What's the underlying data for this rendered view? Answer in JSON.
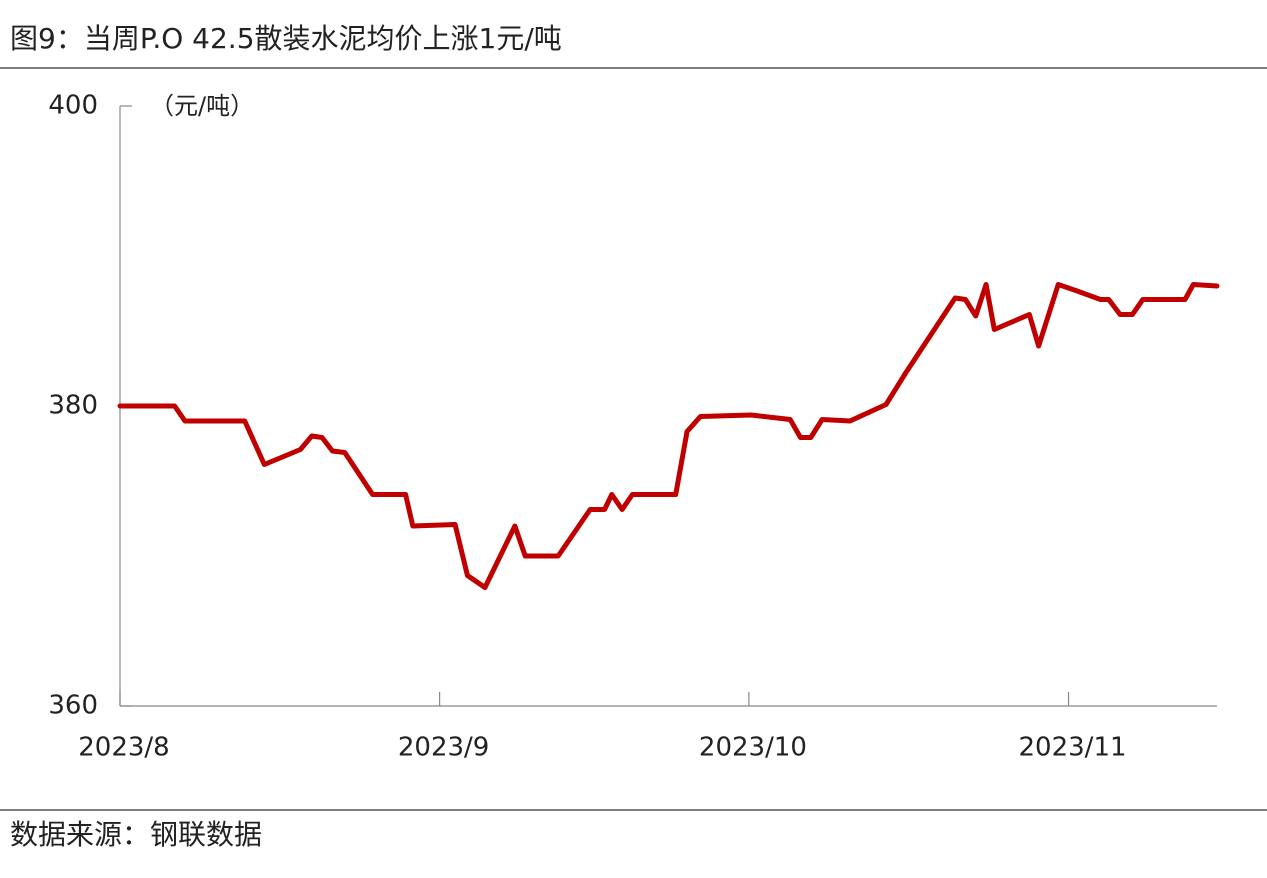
{
  "chart_data": {
    "type": "line",
    "title": "图9：当周P.O 42.5散装水泥均价上涨1元/吨",
    "unit_label": "（元/吨）",
    "source": "数据来源：钢联数据",
    "x": [
      0,
      5.3,
      6.3,
      12.1,
      14,
      17.5,
      18.6,
      19.6,
      20.6,
      21.8,
      24.5,
      27.7,
      28.4,
      32.5,
      33.7,
      35.4,
      38.3,
      39.3,
      42.5,
      45.6,
      47,
      47.7,
      48.7,
      49.7,
      53.9,
      55,
      56.3,
      61.2,
      65,
      66,
      67,
      68.1,
      70.8,
      74.3,
      76.2,
      81,
      82,
      83,
      84,
      84.8,
      88.2,
      89.1,
      91,
      92.7,
      95.1,
      95.9,
      97,
      98.2,
      99.2,
      103.3,
      104.1,
      106.4
    ],
    "series": [
      {
        "name": "P.O 42.5散装水泥均价",
        "color": "#c00000",
        "values": [
          380,
          380,
          379,
          379,
          376.1,
          377.1,
          378,
          377.9,
          377,
          376.9,
          374.1,
          374.1,
          372,
          372.1,
          368.7,
          367.9,
          372,
          370,
          370,
          373.1,
          373.1,
          374.1,
          373.1,
          374.1,
          374.1,
          378.3,
          379.3,
          379.4,
          379.1,
          377.9,
          377.9,
          379.1,
          379,
          380.1,
          382.2,
          387.2,
          387.1,
          386,
          388.1,
          385.1,
          386.1,
          384,
          388.1,
          387.7,
          387.1,
          387.1,
          386.1,
          386.1,
          387.1,
          387.1,
          388.1,
          388
        ]
      }
    ],
    "xlim": [
      0,
      106.4
    ],
    "xticks": [
      {
        "value": 0,
        "label": "2023/8"
      },
      {
        "value": 31,
        "label": "2023/9"
      },
      {
        "value": 61,
        "label": "2023/10"
      },
      {
        "value": 92,
        "label": "2023/11"
      }
    ],
    "ylim": [
      360,
      400
    ],
    "yticks": [
      360,
      380,
      400
    ]
  }
}
